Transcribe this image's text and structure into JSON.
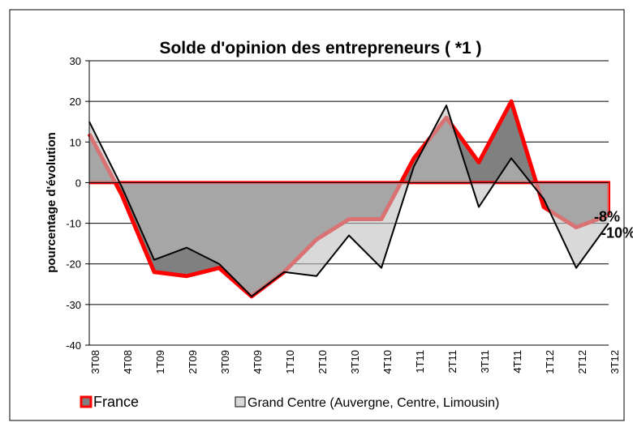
{
  "chart_data": {
    "type": "area",
    "title": "Solde d'opinion des entrepreneurs ( *1 )",
    "y_label": "pourcentage d'évolution",
    "categories": [
      "3T08",
      "4T08",
      "1T09",
      "2T09",
      "3T09",
      "4T09",
      "1T10",
      "2T10",
      "3T10",
      "4T10",
      "1T11",
      "2T11",
      "3T11",
      "4T11",
      "1T12",
      "2T12",
      "3T12"
    ],
    "series": [
      {
        "name": "France",
        "color": "#ff0000",
        "fill": "#808080",
        "values": [
          12,
          -3,
          -22,
          -23,
          -21,
          -28,
          -22,
          -14,
          -9,
          -9,
          6,
          16,
          5,
          20,
          -6,
          -11,
          -8
        ],
        "value_labels": [
          null,
          null,
          null,
          null,
          null,
          null,
          null,
          null,
          null,
          null,
          null,
          null,
          null,
          null,
          null,
          null,
          "-8%"
        ]
      },
      {
        "name": "Grand Centre (Auvergne, Centre, Limousin)",
        "color": "#000000",
        "fill": "#c0c0c0",
        "values": [
          15,
          -1,
          -19,
          -16,
          -20,
          -28,
          -22,
          -23,
          -13,
          -21,
          4,
          19,
          -6,
          6,
          -4,
          -21,
          -10
        ],
        "value_labels": [
          null,
          null,
          null,
          null,
          null,
          null,
          null,
          null,
          null,
          null,
          null,
          null,
          null,
          null,
          null,
          null,
          "-10%"
        ]
      }
    ],
    "ylim": [
      -40,
      30
    ],
    "yticks": [
      -40,
      -30,
      -20,
      -10,
      0,
      10,
      20,
      30
    ],
    "grid": true,
    "legend": "bottom"
  }
}
